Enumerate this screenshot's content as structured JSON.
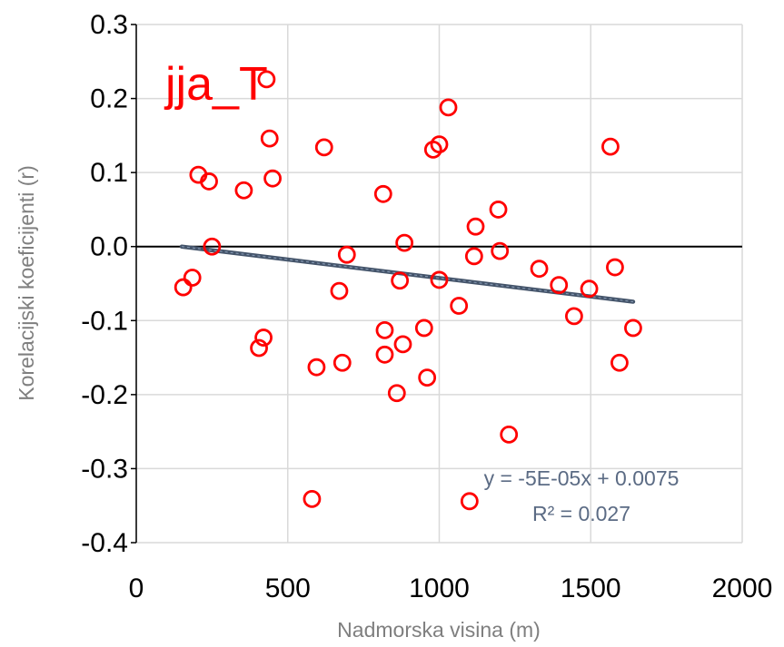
{
  "chart_data": {
    "type": "scatter",
    "panel_label": "jja_T",
    "xlabel": "Nadmorska visina (m)",
    "ylabel": "Korelacijski koeficijenti (r)",
    "xlim": [
      0,
      2000
    ],
    "ylim": [
      -0.4,
      0.3
    ],
    "xticks": [
      0,
      500,
      1000,
      1500,
      2000
    ],
    "xtick_labels": [
      "0",
      "500",
      "1000",
      "1500",
      "2000"
    ],
    "yticks": [
      0.3,
      0.2,
      0.1,
      0.0,
      -0.1,
      -0.2,
      -0.3,
      -0.4
    ],
    "ytick_labels": [
      "0.3",
      "0.2",
      "0.1",
      "0.0",
      "-0.1",
      "-0.2",
      "-0.3",
      "-0.4"
    ],
    "grid": true,
    "marker_color": "#ff0000",
    "trendline_color": "#44546a",
    "trendline": {
      "slope": -5e-05,
      "intercept": 0.0075,
      "x_range": [
        150,
        1640
      ],
      "equation": "y = -5E-05x + 0.0075",
      "r_squared": "R² = 0.027"
    },
    "points": [
      {
        "x": 155,
        "y": -0.055
      },
      {
        "x": 185,
        "y": -0.042
      },
      {
        "x": 205,
        "y": 0.097
      },
      {
        "x": 240,
        "y": 0.088
      },
      {
        "x": 250,
        "y": 0.0
      },
      {
        "x": 355,
        "y": 0.076
      },
      {
        "x": 405,
        "y": -0.137
      },
      {
        "x": 420,
        "y": -0.123
      },
      {
        "x": 430,
        "y": 0.226
      },
      {
        "x": 440,
        "y": 0.146
      },
      {
        "x": 450,
        "y": 0.092
      },
      {
        "x": 580,
        "y": -0.341
      },
      {
        "x": 595,
        "y": -0.163
      },
      {
        "x": 620,
        "y": 0.134
      },
      {
        "x": 670,
        "y": -0.06
      },
      {
        "x": 680,
        "y": -0.157
      },
      {
        "x": 695,
        "y": -0.011
      },
      {
        "x": 815,
        "y": 0.071
      },
      {
        "x": 820,
        "y": -0.113
      },
      {
        "x": 820,
        "y": -0.146
      },
      {
        "x": 860,
        "y": -0.198
      },
      {
        "x": 870,
        "y": -0.046
      },
      {
        "x": 880,
        "y": -0.132
      },
      {
        "x": 885,
        "y": 0.005
      },
      {
        "x": 950,
        "y": -0.11
      },
      {
        "x": 960,
        "y": -0.177
      },
      {
        "x": 980,
        "y": 0.131
      },
      {
        "x": 1000,
        "y": 0.138
      },
      {
        "x": 1000,
        "y": -0.045
      },
      {
        "x": 1030,
        "y": 0.188
      },
      {
        "x": 1065,
        "y": -0.08
      },
      {
        "x": 1100,
        "y": -0.344
      },
      {
        "x": 1115,
        "y": -0.013
      },
      {
        "x": 1120,
        "y": 0.027
      },
      {
        "x": 1195,
        "y": 0.05
      },
      {
        "x": 1200,
        "y": -0.006
      },
      {
        "x": 1230,
        "y": -0.254
      },
      {
        "x": 1330,
        "y": -0.03
      },
      {
        "x": 1395,
        "y": -0.052
      },
      {
        "x": 1445,
        "y": -0.094
      },
      {
        "x": 1495,
        "y": -0.057
      },
      {
        "x": 1565,
        "y": 0.135
      },
      {
        "x": 1580,
        "y": -0.028
      },
      {
        "x": 1595,
        "y": -0.157
      },
      {
        "x": 1640,
        "y": -0.11
      }
    ]
  }
}
